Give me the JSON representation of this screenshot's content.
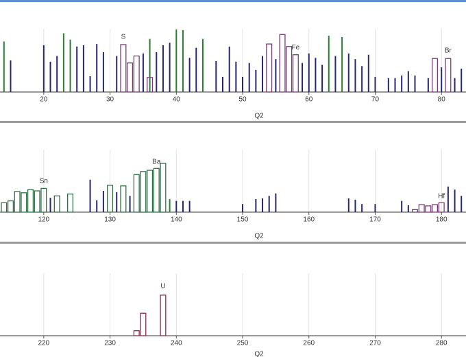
{
  "chart_data": [
    {
      "type": "bar",
      "xlabel": "Q2",
      "xlim": [
        13.4,
        83.7
      ],
      "xticks": [
        20,
        30,
        40,
        50,
        60,
        70,
        80
      ],
      "ylim": [
        0,
        100
      ],
      "grid": true,
      "series": [
        {
          "color": "#262673",
          "style": "line",
          "x": [
            15,
            20,
            21,
            22,
            25,
            26,
            27,
            28,
            29,
            31,
            35,
            37,
            38,
            39,
            42,
            43,
            46,
            47,
            48,
            49,
            50,
            51,
            52,
            53,
            55,
            59,
            60,
            61,
            62,
            64,
            66,
            67,
            68,
            69,
            70,
            72,
            73,
            74,
            75,
            76,
            78,
            80,
            82,
            83
          ],
          "values": [
            50,
            74,
            48,
            57,
            72,
            74,
            25,
            76,
            63,
            57,
            61,
            63,
            74,
            78,
            54,
            70,
            49,
            24,
            72,
            48,
            24,
            46,
            35,
            57,
            52,
            46,
            61,
            54,
            43,
            57,
            61,
            52,
            41,
            59,
            24,
            22,
            22,
            26,
            33,
            26,
            22,
            39,
            22,
            37
          ]
        },
        {
          "color": "#2e7d32",
          "style": "line",
          "x": [
            14,
            23,
            24,
            36,
            40,
            41,
            44,
            63,
            65
          ],
          "values": [
            80,
            93,
            83,
            84,
            99,
            98,
            84,
            89,
            87
          ]
        },
        {
          "color": "#7a3a78",
          "style": "box",
          "x": [
            32,
            33,
            34,
            36,
            54,
            56,
            57,
            58,
            79,
            81
          ],
          "values": [
            75,
            46,
            57,
            23,
            76,
            91,
            72,
            59,
            53,
            53
          ]
        }
      ],
      "annotations": [
        {
          "text": "S",
          "x": 32,
          "y": 83
        },
        {
          "text": "Fe",
          "x": 58,
          "y": 66
        },
        {
          "text": "Br",
          "x": 81,
          "y": 61
        }
      ]
    },
    {
      "type": "bar",
      "xlabel": "Q2",
      "xlim": [
        113.4,
        183.7
      ],
      "xticks": [
        120,
        130,
        140,
        150,
        160,
        170,
        180
      ],
      "ylim": [
        0,
        100
      ],
      "grid": true,
      "series": [
        {
          "color": "#262673",
          "style": "line",
          "x": [
            121,
            127,
            128,
            129,
            131,
            133,
            140,
            141,
            142,
            150,
            152,
            153,
            154,
            155,
            166,
            167,
            168,
            170,
            174,
            175,
            181,
            182,
            183
          ],
          "values": [
            23,
            52,
            19,
            34,
            32,
            26,
            18,
            18,
            18,
            13,
            21,
            22,
            26,
            30,
            22,
            20,
            13,
            13,
            18,
            11,
            41,
            36,
            26
          ]
        },
        {
          "color": "#2e7d32",
          "style": "line",
          "x": [
            139
          ],
          "values": [
            21
          ]
        },
        {
          "color": "#2f6e45",
          "style": "box",
          "x": [
            114,
            115,
            116,
            117,
            118,
            119,
            120,
            122,
            124,
            130,
            132,
            134,
            135,
            136,
            137,
            138
          ],
          "values": [
            15,
            18,
            33,
            31,
            36,
            34,
            38,
            26,
            29,
            43,
            42,
            60,
            65,
            67,
            70,
            78
          ]
        },
        {
          "color": "#7a3a78",
          "style": "box",
          "x": [
            176,
            177,
            178,
            179,
            180
          ],
          "values": [
            4,
            12,
            10,
            12,
            15
          ]
        }
      ],
      "annotations": [
        {
          "text": "Sn",
          "x": 120,
          "y": 45
        },
        {
          "text": "Ba",
          "x": 137,
          "y": 76
        },
        {
          "text": "Hf",
          "x": 180,
          "y": 21
        }
      ]
    },
    {
      "type": "bar",
      "xlabel": "Q2",
      "xlim": [
        213.4,
        283.7
      ],
      "xticks": [
        220,
        230,
        240,
        250,
        260,
        270,
        280
      ],
      "ylim": [
        0,
        100
      ],
      "grid": true,
      "series": [
        {
          "color": "#8a2a4a",
          "style": "box",
          "x": [
            234,
            235,
            238
          ],
          "values": [
            8,
            36,
            65
          ]
        }
      ],
      "annotations": [
        {
          "text": "U",
          "x": 238,
          "y": 75
        }
      ]
    }
  ]
}
